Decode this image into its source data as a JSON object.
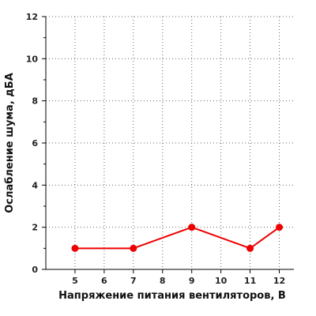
{
  "chart_data": {
    "type": "line",
    "title": "",
    "xlabel": "Напряжение питания вентиляторов, В",
    "ylabel": "Ослабление шума, дБА",
    "xlim": [
      4,
      12.5
    ],
    "ylim": [
      0,
      12
    ],
    "xticks": [
      5,
      6,
      7,
      8,
      9,
      10,
      11,
      12
    ],
    "yticks": [
      0,
      2,
      4,
      6,
      8,
      10,
      12
    ],
    "grid": true,
    "series": [
      {
        "x": [
          5,
          7,
          9,
          11,
          12
        ],
        "y": [
          1,
          1,
          2,
          1,
          2
        ],
        "color": "#ee0000"
      }
    ]
  }
}
